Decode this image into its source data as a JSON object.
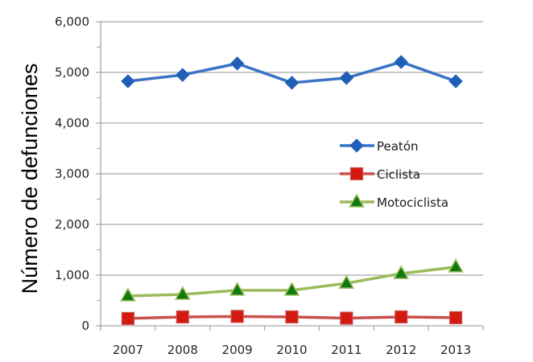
{
  "chart_data": {
    "type": "line",
    "title": "",
    "xlabel": "",
    "ylabel": "Número de defunciones",
    "ylim": [
      0,
      6000
    ],
    "yticks": [
      "0",
      "1,000",
      "2,000",
      "3,000",
      "4,000",
      "5,000",
      "6,000"
    ],
    "ytick_values": [
      0,
      1000,
      2000,
      3000,
      4000,
      5000,
      6000
    ],
    "categories": [
      "2007",
      "2008",
      "2009",
      "2010",
      "2011",
      "2012",
      "2013"
    ],
    "grid": true,
    "legend_position": "center-right",
    "series": [
      {
        "name": "Peatón",
        "color": "#3a72c4",
        "marker": "diamond",
        "marker_color": "#1f5fb8",
        "values": [
          4825,
          4950,
          5175,
          4795,
          4890,
          5205,
          4825
        ]
      },
      {
        "name": "Ciclista",
        "color": "#c9504d",
        "marker": "square",
        "marker_color": "#d41a10",
        "values": [
          145,
          175,
          185,
          175,
          150,
          175,
          160
        ]
      },
      {
        "name": "Motociclista",
        "color": "#9bbb59",
        "marker": "triangle",
        "marker_color": "#0f7a10",
        "values": [
          590,
          620,
          700,
          700,
          840,
          1030,
          1160
        ]
      }
    ]
  }
}
